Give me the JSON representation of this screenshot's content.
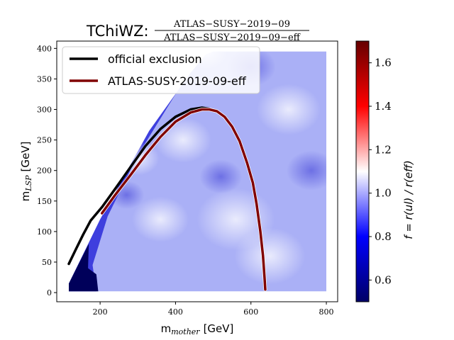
{
  "chart_data": {
    "type": "heatmap",
    "title_prefix": "TChiWZ:",
    "title_numerator": "ATLAS−SUSY−2019−09",
    "title_denominator": "ATLAS−SUSY−2019−09−eff",
    "xlabel_main": "m",
    "xlabel_sub": "mother",
    "xlabel_unit": "[GeV]",
    "ylabel_main": "m",
    "ylabel_sub": "LSP",
    "ylabel_unit": "[GeV]",
    "colorbar_label": "f = r(ul) / r(eff)",
    "xlim": [
      85,
      830
    ],
    "ylim": [
      -15,
      412
    ],
    "xticks": [
      200,
      400,
      600,
      800
    ],
    "yticks": [
      0,
      50,
      100,
      150,
      200,
      250,
      300,
      350,
      400
    ],
    "colorbar_range": [
      0.5,
      1.7
    ],
    "colorbar_ticks": [
      0.6,
      0.8,
      1.0,
      1.2,
      1.4,
      1.6
    ],
    "colormap": [
      "#000066",
      "#0000ff",
      "#ffffff",
      "#ff0000",
      "#660000"
    ],
    "grid": false,
    "legend_position": "top-left",
    "series": [
      {
        "name": "official exclusion",
        "color": "#000000",
        "x": [
          117,
          135,
          155,
          175,
          205,
          240,
          280,
          320,
          360,
          400,
          440,
          470,
          490
        ],
        "y": [
          47,
          70,
          95,
          118,
          140,
          170,
          205,
          240,
          268,
          288,
          300,
          303,
          301
        ]
      },
      {
        "name": "ATLAS-SUSY-2019-09-eff",
        "color": "#800000",
        "x": [
          205,
          240,
          280,
          320,
          360,
          400,
          440,
          470,
          490,
          510,
          530,
          550,
          570,
          590,
          605,
          615,
          625,
          632,
          636,
          638
        ],
        "y": [
          130,
          160,
          192,
          225,
          255,
          280,
          295,
          300,
          300,
          297,
          288,
          272,
          248,
          212,
          180,
          145,
          100,
          60,
          25,
          5
        ]
      }
    ],
    "heatmap_region": {
      "x_range": [
        117,
        800
      ],
      "y_range": [
        2,
        395
      ],
      "diagonal_edge": [
        [
          117,
          2
        ],
        [
          117,
          15
        ],
        [
          200,
          120
        ],
        [
          330,
          265
        ],
        [
          440,
          360
        ],
        [
          480,
          390
        ],
        [
          500,
          395
        ]
      ]
    }
  }
}
